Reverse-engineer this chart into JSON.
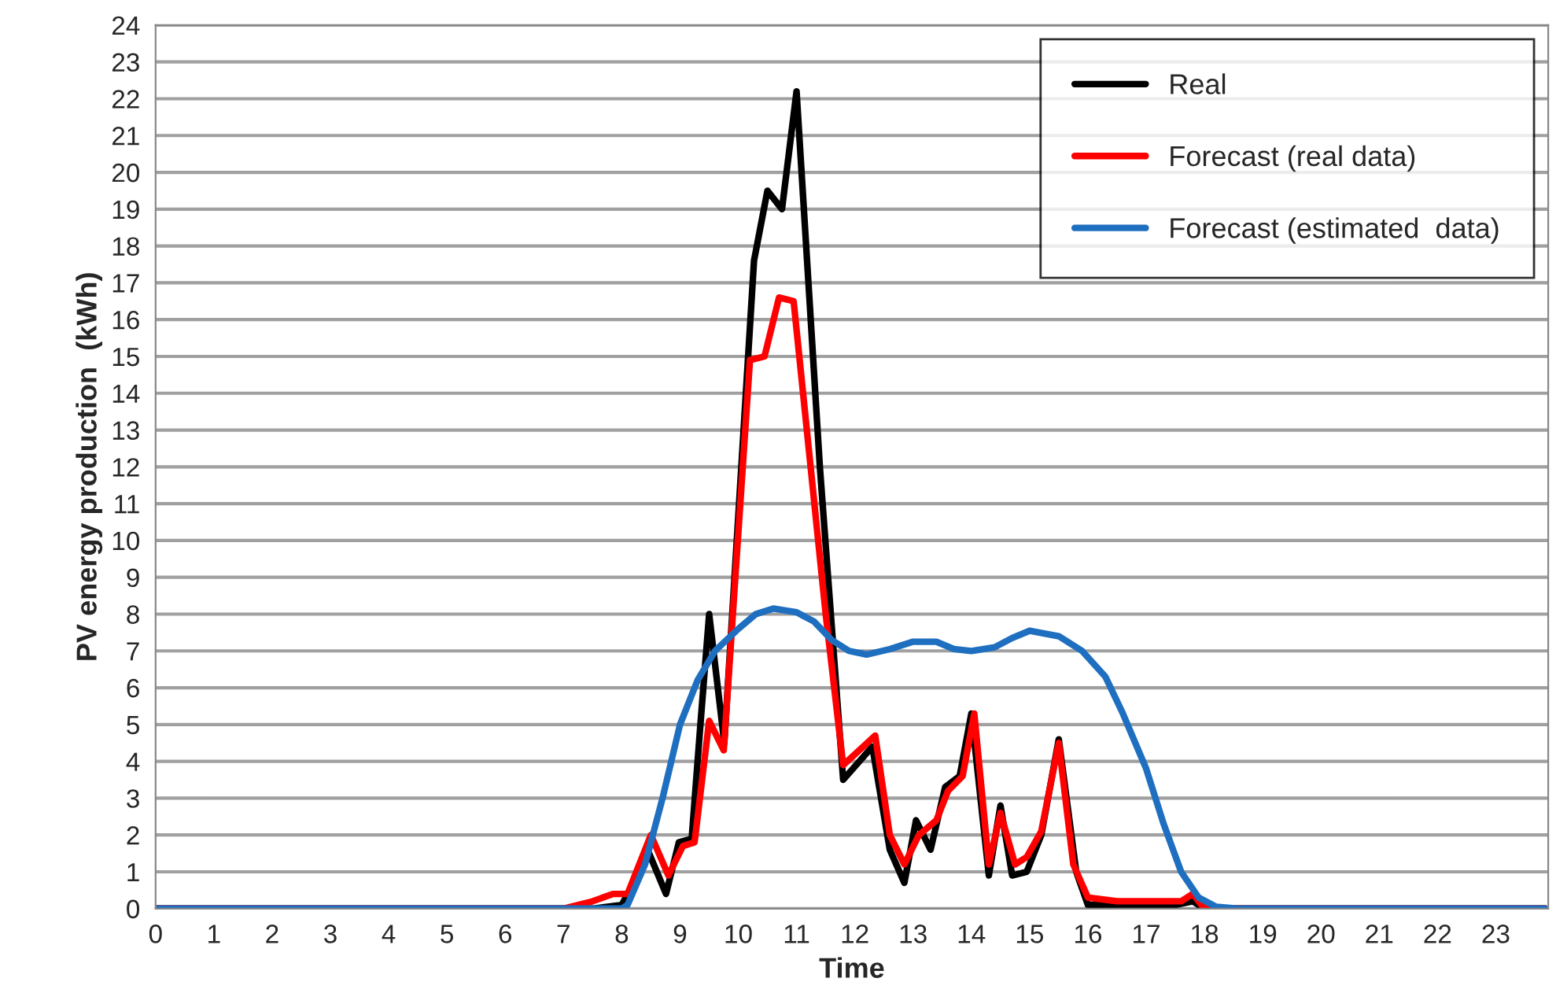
{
  "chart_data": {
    "type": "line",
    "xlabel": "Time",
    "ylabel": "PV energy production  (kWh)",
    "xlim": [
      0,
      23.9
    ],
    "xticks": [
      0,
      1,
      2,
      3,
      4,
      5,
      6,
      7,
      8,
      9,
      10,
      11,
      12,
      13,
      14,
      15,
      16,
      17,
      18,
      19,
      20,
      21,
      22,
      23
    ],
    "ylim": [
      0,
      24
    ],
    "yticks": [
      0,
      1,
      2,
      3,
      4,
      5,
      6,
      7,
      8,
      9,
      10,
      11,
      12,
      13,
      14,
      15,
      16,
      17,
      18,
      19,
      20,
      21,
      22,
      23,
      24
    ],
    "grid": "y",
    "legend": "top right",
    "line_style": "solid",
    "series": [
      {
        "name": "Real",
        "color": "#000000",
        "x": [
          0,
          7.5,
          8.0,
          8.47,
          8.76,
          8.98,
          9.2,
          9.35,
          9.5,
          9.76,
          10.27,
          10.5,
          10.75,
          11.0,
          11.4,
          11.8,
          12.3,
          12.6,
          12.85,
          13.05,
          13.3,
          13.55,
          13.8,
          14.0,
          14.3,
          14.5,
          14.7,
          14.95,
          15.2,
          15.5,
          15.8,
          16.0,
          16.5,
          17.0,
          17.5,
          17.8,
          18.0,
          23.85
        ],
        "values": [
          0,
          0,
          0.1,
          1.5,
          0.4,
          1.8,
          1.9,
          5,
          8.0,
          4.5,
          17.6,
          19.5,
          19.0,
          22.2,
          12,
          3.5,
          4.4,
          1.6,
          0.7,
          2.4,
          1.6,
          3.3,
          3.6,
          5.3,
          0.9,
          2.8,
          0.9,
          1.0,
          2.0,
          4.6,
          1.0,
          0.1,
          0.1,
          0.1,
          0.1,
          0.2,
          0,
          0
        ]
      },
      {
        "name": "Forecast (real data)",
        "color": "#ff0000",
        "x": [
          0,
          7.0,
          7.5,
          7.85,
          8.1,
          8.5,
          8.8,
          9.05,
          9.25,
          9.5,
          9.75,
          10.2,
          10.45,
          10.7,
          10.95,
          11.5,
          11.8,
          12.35,
          12.6,
          12.85,
          13.1,
          13.4,
          13.6,
          13.85,
          14.05,
          14.3,
          14.5,
          14.75,
          14.95,
          15.2,
          15.5,
          15.75,
          16.0,
          16.5,
          17.0,
          17.6,
          17.8,
          18.0,
          23.85
        ],
        "values": [
          0,
          0,
          0.2,
          0.4,
          0.4,
          2.0,
          0.9,
          1.7,
          1.8,
          5.1,
          4.3,
          14.9,
          15.0,
          16.6,
          16.5,
          8,
          3.9,
          4.7,
          2.0,
          1.2,
          2.0,
          2.4,
          3.2,
          3.6,
          5.3,
          1.2,
          2.6,
          1.2,
          1.4,
          2.1,
          4.5,
          1.2,
          0.3,
          0.2,
          0.2,
          0.2,
          0.4,
          0,
          0
        ]
      },
      {
        "name": "Forecast (estimated  data)",
        "color": "#1f6fc0",
        "x": [
          0,
          8.0,
          8.1,
          8.4,
          8.7,
          9.0,
          9.3,
          9.6,
          10.0,
          10.3,
          10.6,
          11.0,
          11.3,
          11.6,
          11.9,
          12.2,
          12.6,
          13.0,
          13.4,
          13.7,
          14.0,
          14.4,
          14.7,
          15.0,
          15.5,
          15.9,
          16.3,
          16.6,
          17.0,
          17.3,
          17.6,
          17.9,
          18.2,
          18.6,
          23.85
        ],
        "values": [
          0,
          0,
          0.1,
          1.2,
          3,
          5,
          6.2,
          7.0,
          7.6,
          8.0,
          8.15,
          8.05,
          7.8,
          7.3,
          7.0,
          6.9,
          7.05,
          7.25,
          7.25,
          7.05,
          7.0,
          7.1,
          7.35,
          7.55,
          7.4,
          7.0,
          6.3,
          5.3,
          3.8,
          2.3,
          1.0,
          0.3,
          0.05,
          0,
          0
        ]
      }
    ]
  }
}
